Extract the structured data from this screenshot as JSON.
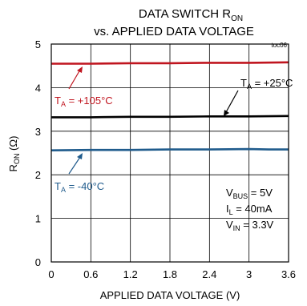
{
  "chart_data": {
    "type": "line",
    "title_main": "DATA SWITCH R",
    "title_main_sub": "ON",
    "title_line2": "vs. APPLIED DATA VOLTAGE",
    "tag": "toc06",
    "xlabel": "APPLIED DATA VOLTAGE (V)",
    "ylabel_main": "R",
    "ylabel_sub": "ON",
    "ylabel_unit": " (Ω)",
    "xlim": [
      0,
      3.6
    ],
    "ylim": [
      0,
      5
    ],
    "x_ticks": [
      "0",
      "0.6",
      "1.2",
      "1.8",
      "2.4",
      "3",
      "3.6"
    ],
    "y_ticks": [
      "0",
      "1",
      "2",
      "3",
      "4",
      "5"
    ],
    "grid": true,
    "series": [
      {
        "name": "TA = +105°C",
        "label_parts": [
          "T",
          "A",
          " = +105°C"
        ],
        "color": "#c0151f",
        "x": [
          0,
          0.6,
          1.2,
          1.8,
          2.4,
          3.0,
          3.6
        ],
        "y": [
          4.55,
          4.55,
          4.56,
          4.56,
          4.57,
          4.57,
          4.58
        ]
      },
      {
        "name": "TA = +25°C",
        "label_parts": [
          "T",
          "A",
          " = +25°C"
        ],
        "color": "#000000",
        "x": [
          0,
          0.6,
          1.2,
          1.8,
          2.4,
          3.0,
          3.6
        ],
        "y": [
          3.32,
          3.32,
          3.33,
          3.33,
          3.34,
          3.34,
          3.35
        ]
      },
      {
        "name": "TA = -40°C",
        "label_parts": [
          "T",
          "A",
          " = -40°C"
        ],
        "color": "#1f5b8c",
        "x": [
          0,
          0.6,
          1.2,
          1.8,
          2.4,
          3.0,
          3.3,
          3.6
        ],
        "y": [
          2.56,
          2.57,
          2.57,
          2.58,
          2.58,
          2.59,
          2.58,
          2.58
        ]
      }
    ],
    "conditions": [
      [
        "V",
        "BUS",
        " = 5V"
      ],
      [
        "I",
        "L",
        " = 40mA"
      ],
      [
        "V",
        "IN",
        " = 3.3V"
      ]
    ]
  }
}
